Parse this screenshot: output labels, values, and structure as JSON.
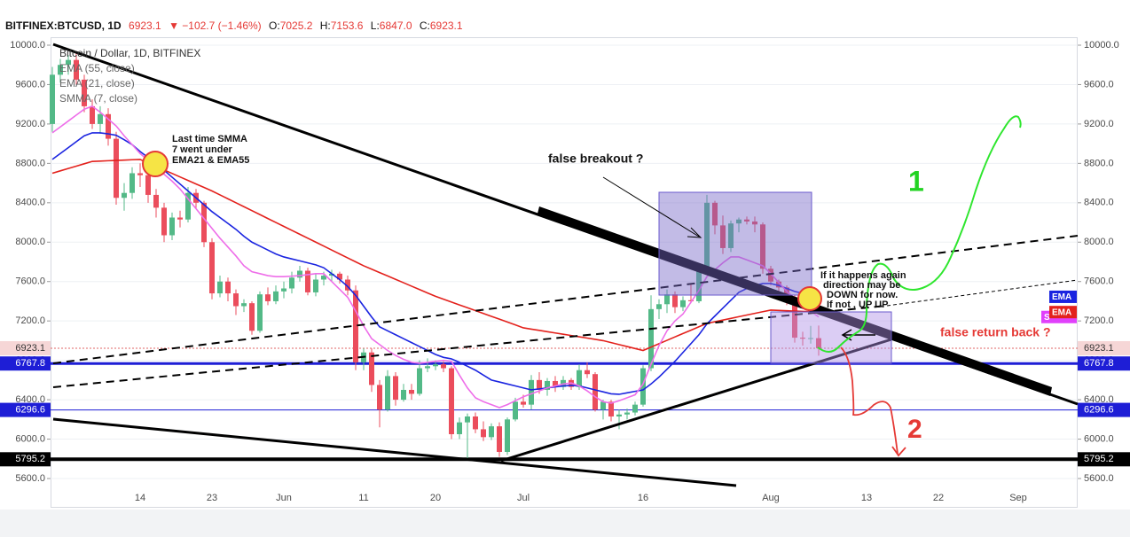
{
  "chart_data": {
    "type": "candlestick",
    "header": {
      "symbol": "BITFINEX:BTCUSD, 1D",
      "last": "6923.1",
      "change": "▼ −102.7 (−1.46%)",
      "ohlc": [
        {
          "key": "O:",
          "value": "7025.2"
        },
        {
          "key": "H:",
          "value": "7153.6"
        },
        {
          "key": "L:",
          "value": "6847.0"
        },
        {
          "key": "C:",
          "value": "6923.1"
        }
      ]
    },
    "title": "Bitcoin / Dollar, 1D, BITFINEX",
    "categories": [
      null,
      null,
      null,
      null,
      null,
      null,
      null,
      null,
      null,
      null,
      null,
      "14",
      null,
      null,
      null,
      null,
      null,
      null,
      null,
      null,
      "23",
      null,
      null,
      null,
      null,
      null,
      null,
      null,
      null,
      "Jun",
      null,
      null,
      null,
      null,
      null,
      null,
      null,
      null,
      null,
      "11",
      null,
      null,
      null,
      null,
      null,
      null,
      null,
      null,
      "20",
      null,
      null,
      null,
      null,
      null,
      null,
      null,
      null,
      null,
      null,
      "Jul",
      null,
      null,
      null,
      null,
      null,
      null,
      null,
      null,
      null,
      null,
      null,
      null,
      null,
      null,
      "16",
      null,
      null,
      null,
      null,
      null,
      null,
      null,
      null,
      null,
      null,
      null,
      null,
      null,
      null,
      null,
      "Aug",
      null,
      null,
      null,
      null,
      null,
      null,
      null,
      null,
      null,
      null,
      null,
      "13",
      null,
      null,
      null,
      null,
      null,
      null,
      null,
      null,
      "22",
      null,
      null,
      null,
      null,
      null,
      null,
      null,
      null,
      null,
      "Sep",
      null,
      null,
      null,
      null,
      null,
      null,
      null,
      null
    ],
    "open": [
      9200,
      9700,
      9800,
      9850,
      9650,
      9380,
      9200,
      9300,
      9050,
      8450,
      8500,
      8700,
      8680,
      8480,
      8350,
      8070,
      8250,
      8230,
      8500,
      8400,
      8000,
      7480,
      7600,
      7480,
      7350,
      7380,
      7100,
      7470,
      7400,
      7500,
      7530,
      7640,
      7710,
      7490,
      7620,
      7660,
      7680,
      7620,
      7510,
      6780,
      6880,
      6550,
      6300,
      6640,
      6400,
      6500,
      6460,
      6720,
      6740,
      6760,
      6720,
      6050,
      6170,
      6230,
      6100,
      6020,
      6130,
      5870,
      6200,
      6380,
      6350,
      6600,
      6500,
      6590,
      6530,
      6600,
      6530,
      6700,
      6660,
      6300,
      6380,
      6230,
      6250,
      6270,
      6350,
      6720,
      7320,
      7370,
      7470,
      7340,
      7410,
      7400,
      7710,
      8400,
      8170,
      7940,
      8190,
      8230,
      8210,
      8180,
      7730,
      7600,
      7540,
      7420,
      7030,
      7020,
      7025.2,
      null,
      null,
      null,
      null,
      null,
      null,
      null,
      null,
      null,
      null,
      null,
      null,
      null,
      null,
      null,
      null,
      null,
      null,
      null,
      null,
      null,
      null,
      null,
      null,
      null,
      null,
      null,
      null,
      null,
      null,
      null,
      null,
      null
    ],
    "high": [
      9780,
      9860,
      9900,
      9940,
      9700,
      9450,
      9380,
      9360,
      9120,
      8600,
      8760,
      8800,
      8720,
      8540,
      8400,
      8300,
      8320,
      8560,
      8540,
      8420,
      8040,
      7660,
      7640,
      7520,
      7420,
      7400,
      7500,
      7540,
      7560,
      7600,
      7700,
      7760,
      7740,
      7680,
      7700,
      7720,
      7700,
      7660,
      7560,
      6920,
      6920,
      6600,
      6700,
      6680,
      6560,
      6560,
      6800,
      6820,
      6800,
      6790,
      6740,
      6220,
      6260,
      6270,
      6180,
      6160,
      6170,
      6220,
      6420,
      6450,
      6650,
      6680,
      6620,
      6640,
      6640,
      6620,
      6760,
      6780,
      6680,
      6400,
      6400,
      6300,
      6310,
      6380,
      6750,
      7460,
      7420,
      7520,
      7500,
      7450,
      7580,
      7760,
      8480,
      8420,
      8270,
      8220,
      8250,
      8260,
      8260,
      8200,
      7760,
      7620,
      7560,
      7460,
      7090,
      7150,
      7153.6,
      null,
      null,
      null,
      null,
      null,
      null,
      null,
      null,
      null,
      null,
      null,
      null,
      null,
      null,
      null,
      null,
      null,
      null,
      null,
      null,
      null,
      null,
      null,
      null,
      null,
      null,
      null,
      null,
      null,
      null,
      null,
      null,
      null
    ],
    "low": [
      9120,
      9620,
      9700,
      9600,
      9320,
      9150,
      9100,
      8980,
      8380,
      8320,
      8440,
      8560,
      8400,
      8250,
      8000,
      8020,
      8150,
      8200,
      8340,
      7950,
      7420,
      7440,
      7400,
      7260,
      7290,
      7060,
      7080,
      7360,
      7370,
      7430,
      7480,
      7600,
      7460,
      7450,
      7560,
      7600,
      7580,
      7460,
      6700,
      6700,
      6480,
      6120,
      6280,
      6340,
      6380,
      6400,
      6440,
      6680,
      6700,
      6680,
      6000,
      6000,
      5780,
      6060,
      5980,
      5990,
      5820,
      5840,
      6180,
      6320,
      6300,
      6460,
      6440,
      6480,
      6500,
      6500,
      6500,
      6620,
      6280,
      6200,
      6180,
      6100,
      6200,
      6240,
      6330,
      6690,
      7220,
      7280,
      7280,
      7300,
      7380,
      7380,
      7700,
      8080,
      7880,
      7900,
      8100,
      8180,
      8100,
      7680,
      7560,
      7480,
      7360,
      6980,
      6950,
      6970,
      6847,
      null,
      null,
      null,
      null,
      null,
      null,
      null,
      null,
      null,
      null,
      null,
      null,
      null,
      null,
      null,
      null,
      null,
      null,
      null,
      null,
      null,
      null,
      null,
      null,
      null,
      null,
      null,
      null,
      null,
      null,
      null,
      null,
      null
    ],
    "close": [
      9700,
      9800,
      9850,
      9650,
      9380,
      9200,
      9300,
      9050,
      8450,
      8500,
      8700,
      8680,
      8480,
      8350,
      8070,
      8250,
      8230,
      8500,
      8400,
      8000,
      7480,
      7600,
      7480,
      7350,
      7380,
      7100,
      7470,
      7400,
      7500,
      7530,
      7640,
      7710,
      7490,
      7620,
      7660,
      7680,
      7620,
      7510,
      6780,
      6880,
      6550,
      6300,
      6640,
      6400,
      6500,
      6460,
      6720,
      6740,
      6760,
      6720,
      6050,
      6170,
      6230,
      6100,
      6020,
      6130,
      5870,
      6200,
      6380,
      6350,
      6600,
      6500,
      6590,
      6530,
      6600,
      6530,
      6700,
      6660,
      6300,
      6380,
      6230,
      6250,
      6270,
      6350,
      6720,
      7320,
      7370,
      7470,
      7340,
      7410,
      7400,
      7710,
      8400,
      8170,
      7940,
      8190,
      8230,
      8210,
      8180,
      7730,
      7600,
      7540,
      7420,
      7030,
      7020,
      7025.8,
      6923.1,
      null,
      null,
      null,
      null,
      null,
      null,
      null,
      null,
      null,
      null,
      null,
      null,
      null,
      null,
      null,
      null,
      null,
      null,
      null,
      null,
      null,
      null,
      null,
      null,
      null,
      null,
      null,
      null,
      null,
      null,
      null,
      null,
      null
    ],
    "up_color": "#53b987",
    "down_color": "#eb4d5c",
    "series": [
      {
        "name": "EMA (55, close)",
        "color": "#e3211c",
        "tag": "EMA",
        "values": [
          8700,
          8724,
          8748,
          8772,
          8796,
          8820,
          8823,
          8827,
          8830,
          8833,
          8837,
          8840,
          8804,
          8769,
          8733,
          8698,
          8662,
          8627,
          8591,
          8556,
          8520,
          8480,
          8440,
          8400,
          8360,
          8320,
          8280,
          8240,
          8200,
          8160,
          8120,
          8080,
          8040,
          8000,
          7960,
          7920,
          7880,
          7840,
          7800,
          7760,
          7726,
          7691,
          7657,
          7622,
          7588,
          7553,
          7519,
          7484,
          7450,
          7421,
          7392,
          7363,
          7334,
          7305,
          7276,
          7247,
          7218,
          7189,
          7160,
          7130,
          7117,
          7104,
          7091,
          7078,
          7065,
          7052,
          7039,
          7026,
          7013,
          7000,
          6980,
          6960,
          6940,
          6920,
          6900,
          6934,
          6969,
          7003,
          7038,
          7072,
          7106,
          7141,
          7175,
          7192,
          7209,
          7226,
          7243,
          7260,
          7277,
          7294,
          7310,
          7307,
          7303,
          7300,
          7297,
          7293,
          7290,
          null,
          null,
          null,
          null,
          null,
          null,
          null,
          null,
          null,
          null,
          null,
          null,
          null,
          null,
          null,
          null,
          null,
          null,
          null,
          null,
          null,
          null,
          null,
          null,
          null,
          null,
          null,
          null,
          null,
          null,
          null,
          null,
          null
        ]
      },
      {
        "name": "EMA (21, close)",
        "color": "#1a24e0",
        "tag": "EMA",
        "values": [
          8840,
          8900,
          8960,
          9020,
          9080,
          9110,
          9110,
          9100,
          9085,
          9040,
          8990,
          8920,
          8860,
          8790,
          8730,
          8660,
          8590,
          8520,
          8450,
          8380,
          8310,
          8250,
          8190,
          8130,
          8060,
          8000,
          7960,
          7920,
          7880,
          7850,
          7830,
          7810,
          7790,
          7770,
          7740,
          7680,
          7620,
          7550,
          7460,
          7350,
          7240,
          7140,
          7100,
          7060,
          7020,
          6980,
          6940,
          6900,
          6860,
          6830,
          6815,
          6780,
          6740,
          6700,
          6650,
          6600,
          6580,
          6560,
          6540,
          6520,
          6500,
          6510,
          6520,
          6530,
          6540,
          6545,
          6540,
          6520,
          6500,
          6480,
          6460,
          6455,
          6470,
          6485,
          6500,
          6560,
          6630,
          6710,
          6790,
          6880,
          6970,
          7060,
          7170,
          7250,
          7330,
          7410,
          7490,
          7530,
          7560,
          7580,
          7580,
          7560,
          7530,
          7500,
          7480,
          7460,
          7445,
          null,
          null,
          null,
          null,
          null,
          null,
          null,
          null,
          null,
          null,
          null,
          null,
          null,
          null,
          null,
          null,
          null,
          null,
          null,
          null,
          null,
          null,
          null,
          null,
          null,
          null,
          null,
          null,
          null,
          null,
          null,
          null,
          null
        ]
      },
      {
        "name": "SMMA (7, close)",
        "color": "#ee6ee9",
        "tag": "S",
        "tag_color": "#e040fb",
        "values": [
          9110,
          9170,
          9230,
          9290,
          9350,
          9380,
          9320,
          9250,
          9180,
          9080,
          8990,
          8900,
          8830,
          8760,
          8690,
          8620,
          8540,
          8440,
          8340,
          8240,
          8140,
          8040,
          7950,
          7860,
          7760,
          7700,
          7680,
          7660,
          7650,
          7650,
          7655,
          7660,
          7670,
          7680,
          7680,
          7600,
          7520,
          7440,
          7300,
          7150,
          7020,
          6960,
          6900,
          6850,
          6810,
          6780,
          6770,
          6780,
          6790,
          6800,
          6790,
          6650,
          6520,
          6420,
          6380,
          6350,
          6320,
          6350,
          6390,
          6430,
          6460,
          6490,
          6520,
          6540,
          6560,
          6570,
          6540,
          6490,
          6430,
          6380,
          6365,
          6390,
          6420,
          6450,
          6560,
          6760,
          6950,
          7100,
          7200,
          7270,
          7390,
          7510,
          7650,
          7720,
          7790,
          7850,
          7850,
          7820,
          7790,
          7760,
          7680,
          7590,
          7500,
          7430,
          7360,
          7300,
          7240,
          null,
          null,
          null,
          null,
          null,
          null,
          null,
          null,
          null,
          null,
          null,
          null,
          null,
          null,
          null,
          null,
          null,
          null,
          null,
          null,
          null,
          null,
          null,
          null,
          null,
          null,
          null,
          null,
          null,
          null,
          null,
          null,
          null
        ]
      }
    ],
    "price_lines": [
      {
        "value": 6923.1,
        "color": "#e06666",
        "style": "dotted",
        "tag_fill": "#f6d6d6",
        "tag_text": "#333333"
      },
      {
        "value": 6767.8,
        "color": "#1e1ed6",
        "style": "thick",
        "tag_fill": "#1e1ed6",
        "tag_text": "#ffffff"
      },
      {
        "value": 6296.6,
        "color": "#1e1ed6",
        "style": "thin",
        "tag_fill": "#1e1ed6",
        "tag_text": "#ffffff"
      },
      {
        "value": 5795.2,
        "color": "#000000",
        "style": "heavy",
        "tag_fill": "#000000",
        "tag_text": "#ffffff"
      }
    ],
    "ylim": [
      5483,
      10081
    ],
    "yticks": [
      {
        "value": 10000,
        "label": "10000.0"
      },
      {
        "value": 9600,
        "label": "9600.0"
      },
      {
        "value": 9200,
        "label": "9200.0"
      },
      {
        "value": 8800,
        "label": "8800.0"
      },
      {
        "value": 8400,
        "label": "8400.0"
      },
      {
        "value": 8000,
        "label": "8000.0"
      },
      {
        "value": 7600,
        "label": "7600.0"
      },
      {
        "value": 7200,
        "label": "7200.0"
      },
      {
        "value": 6800,
        "label": "6800.0"
      },
      {
        "value": 6400,
        "label": "6400.0"
      },
      {
        "value": 6000,
        "label": "6000.0"
      },
      {
        "value": 5600,
        "label": "5600.0"
      }
    ],
    "grid": true,
    "annotations": {
      "last_time": [
        "Last time SMMA",
        "7 went under",
        "EMA21 & EMA55"
      ],
      "false_breakout": "false breakout ?",
      "scenario_1": "1",
      "scenario_2": "2",
      "if_happens": [
        "If it happens again",
        "direction may be",
        "DOWN for now.",
        "If not , UP UP"
      ],
      "false_return": "false return back ?"
    }
  }
}
